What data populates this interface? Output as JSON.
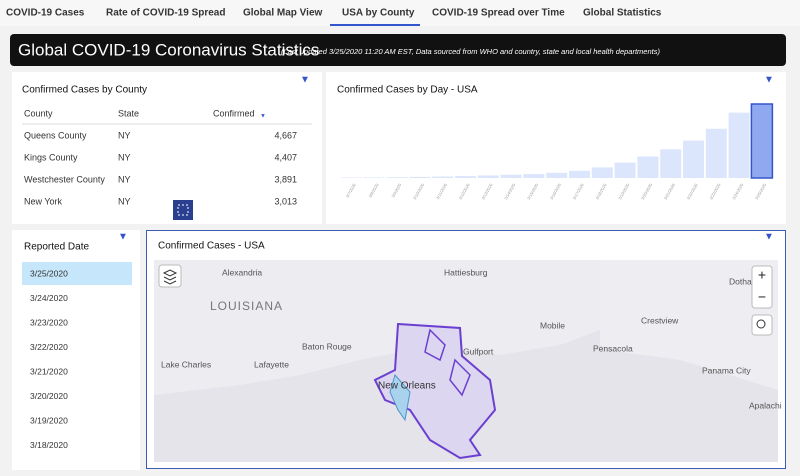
{
  "tabs": [
    "COVID-19 Cases",
    "Rate of COVID-19 Spread",
    "Global Map View",
    "USA by County",
    "COVID-19 Spread over Time",
    "Global Statistics"
  ],
  "header": {
    "title": "Global COVID-19 Coronavirus Statistics",
    "subtitle": "(Last updated 3/25/2020 11:20 AM EST, Data sourced from WHO and country, state and local health departments)"
  },
  "county_table": {
    "title": "Confirmed Cases by County",
    "columns": [
      "County",
      "State",
      "Confirmed"
    ],
    "rows": [
      [
        "Queens County",
        "NY",
        "4,667"
      ],
      [
        "Kings County",
        "NY",
        "4,407"
      ],
      [
        "Westchester County",
        "NY",
        "3,891"
      ],
      [
        "New York",
        "NY",
        "3,013"
      ]
    ]
  },
  "chart_data": {
    "type": "bar",
    "title": "Confirmed Cases by Day - USA",
    "categories": [
      "3/7/2020",
      "3/8/2020",
      "3/9/2020",
      "3/10/2020",
      "3/11/2020",
      "3/12/2020",
      "3/13/2020",
      "3/14/2020",
      "3/15/2020",
      "3/16/2020",
      "3/17/2020",
      "3/18/2020",
      "3/19/2020",
      "3/20/2020",
      "3/21/2020",
      "3/22/2020",
      "3/23/2020",
      "3/24/2020",
      "3/25/2020"
    ],
    "values": [
      400,
      500,
      700,
      1000,
      1300,
      1700,
      2200,
      2900,
      3500,
      4600,
      6400,
      9400,
      13700,
      19100,
      25500,
      33200,
      43700,
      58000,
      65700
    ],
    "color": "#dbe5fb",
    "highlight_color": "#8fa8f0"
  },
  "reported_date": {
    "title": "Reported Date",
    "dates": [
      "3/25/2020",
      "3/24/2020",
      "3/23/2020",
      "3/22/2020",
      "3/21/2020",
      "3/20/2020",
      "3/19/2020",
      "3/18/2020"
    ]
  },
  "map": {
    "title": "Confirmed Cases - USA",
    "state_label": "LOUISIANA",
    "places": [
      "Alexandria",
      "Hattiesburg",
      "Dotha",
      "Mobile",
      "Crestview",
      "Baton Rouge",
      "Gulfport",
      "Pensacola",
      "Lake Charles",
      "Lafayette",
      "New Orleans",
      "Panama City",
      "Apalachi"
    ]
  }
}
